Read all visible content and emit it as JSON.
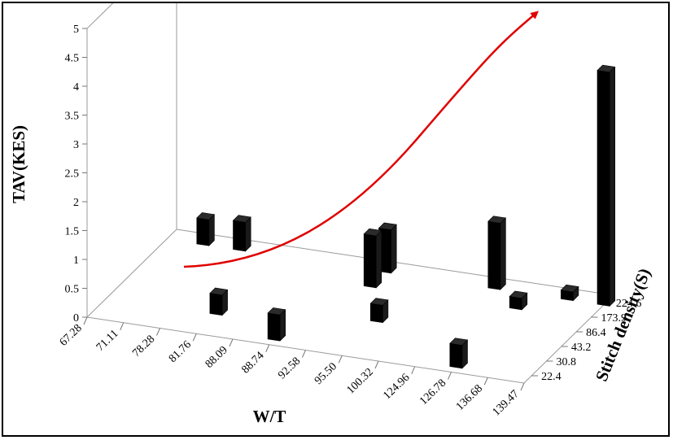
{
  "chart_data": {
    "type": "bar",
    "subtype": "3d-column",
    "xlabel": "W/T",
    "ylabel": "TAV(KES)",
    "zlabel": "Stitch density(S)",
    "x_categories": [
      "67.28",
      "71.11",
      "78.28",
      "81.76",
      "88.09",
      "88.74",
      "92.58",
      "95.50",
      "100.32",
      "124.96",
      "126.78",
      "136.68",
      "139.47"
    ],
    "z_categories": [
      "22.4",
      "30.8",
      "43.2",
      "86.4",
      "173.9",
      "224.6"
    ],
    "y_ticks": [
      "0",
      "0.5",
      "1",
      "1.5",
      "2",
      "2.5",
      "3",
      "3.5",
      "4",
      "4.5",
      "5"
    ],
    "ylim": [
      0,
      5
    ],
    "bars": [
      {
        "x": "81.76",
        "z": "30.8",
        "value": 0.35
      },
      {
        "x": "88.74",
        "z": "22.4",
        "value": 0.45
      },
      {
        "x": "95.50",
        "z": "43.2",
        "value": 0.3
      },
      {
        "x": "126.78",
        "z": "22.4",
        "value": 0.4
      },
      {
        "x": "92.58",
        "z": "224.6",
        "value": 0.75
      },
      {
        "x": "92.58",
        "z": "173.9",
        "value": 0.9
      },
      {
        "x": "126.78",
        "z": "173.9",
        "value": 0.2
      },
      {
        "x": "78.28",
        "z": "224.6",
        "value": 0.5
      },
      {
        "x": "71.11",
        "z": "224.6",
        "value": 0.45
      },
      {
        "x": "124.96",
        "z": "224.6",
        "value": 1.15
      },
      {
        "x": "139.47",
        "z": "224.6",
        "value": 4.05
      },
      {
        "x": "136.68",
        "z": "224.6",
        "value": 0.15
      }
    ],
    "trend_arrow": {
      "color": "#e00000"
    },
    "bar_color": "#000000",
    "grid": false
  }
}
